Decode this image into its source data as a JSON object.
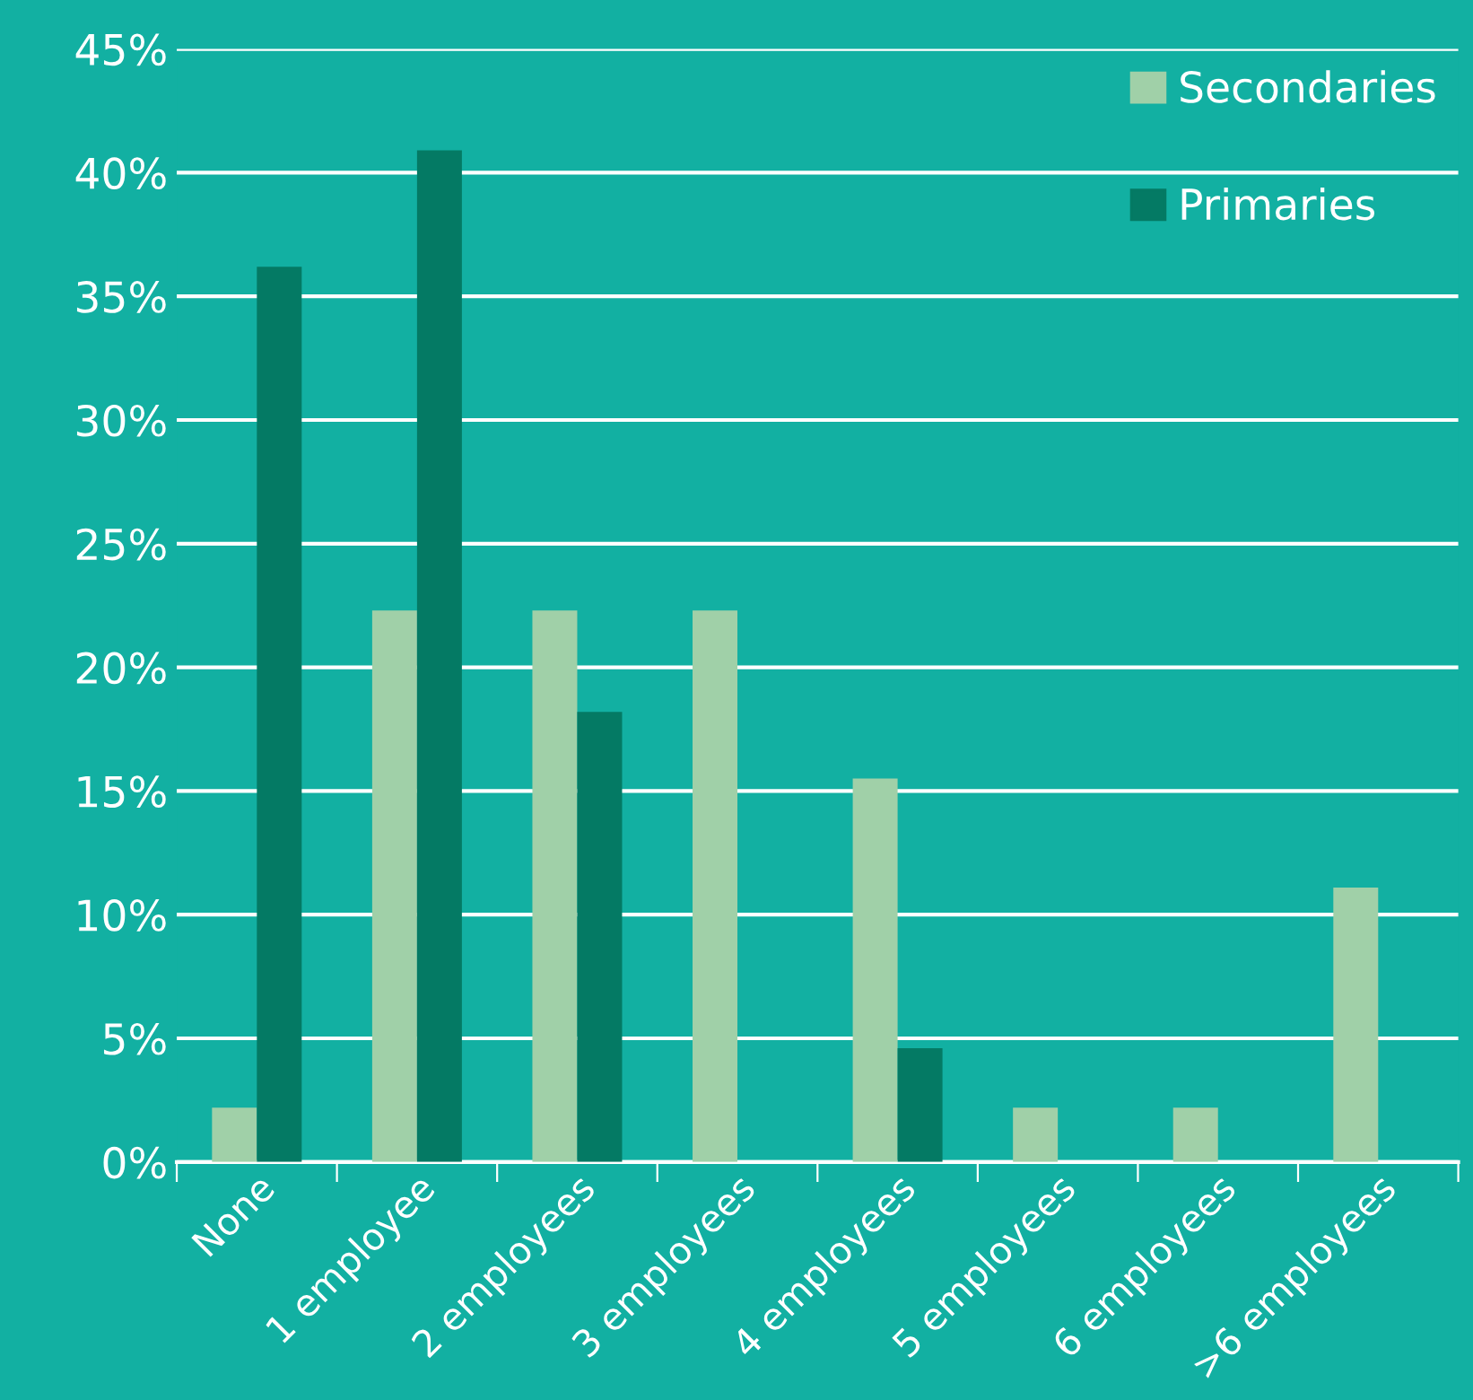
{
  "chart_data": {
    "type": "bar",
    "categories": [
      "None",
      "1 employee",
      "2 employees",
      "3 employees",
      "4 employees",
      "5 employees",
      "6 employees",
      ">6 employees"
    ],
    "series": [
      {
        "name": "Secondaries",
        "color": "#a0d0a8",
        "values": [
          2.2,
          22.3,
          22.3,
          22.3,
          15.5,
          2.2,
          2.2,
          11.1
        ]
      },
      {
        "name": "Primaries",
        "color": "#047a64",
        "values": [
          36.2,
          40.9,
          18.2,
          0,
          4.6,
          0,
          0,
          0
        ]
      }
    ],
    "ylim": [
      0,
      45
    ],
    "yticks": [
      {
        "value": 0,
        "label": "0%"
      },
      {
        "value": 5,
        "label": "5%"
      },
      {
        "value": 10,
        "label": "10%"
      },
      {
        "value": 15,
        "label": "15%"
      },
      {
        "value": 20,
        "label": "20%"
      },
      {
        "value": 25,
        "label": "25%"
      },
      {
        "value": 30,
        "label": "30%"
      },
      {
        "value": 35,
        "label": "35%"
      },
      {
        "value": 40,
        "label": "40%"
      },
      {
        "value": 45,
        "label": "45%"
      }
    ],
    "grid": "y",
    "legend": "top right"
  }
}
